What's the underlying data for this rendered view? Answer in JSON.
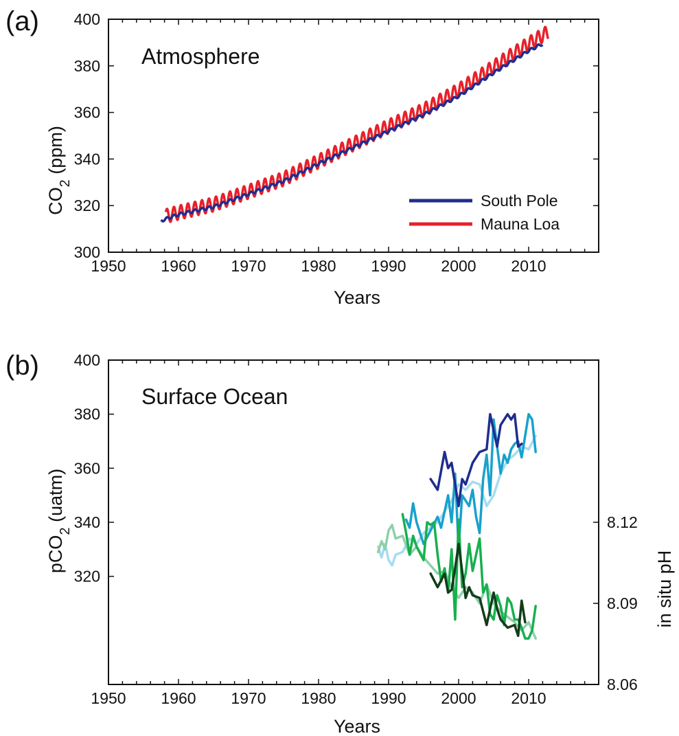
{
  "chart_data": [
    {
      "panel_letter": "(a)",
      "type": "line",
      "title": "Atmosphere",
      "xlabel": "Years",
      "ylabel": "CO2 (ppm)",
      "xlim": [
        1950,
        2020
      ],
      "ylim": [
        300,
        400
      ],
      "xticks": [
        1950,
        1960,
        1970,
        1980,
        1990,
        2000,
        2010
      ],
      "yticks": [
        300,
        320,
        340,
        360,
        380,
        400
      ],
      "grid": false,
      "legend_position": "lower-right",
      "series": [
        {
          "name": "South Pole",
          "color": "#1f2d8f",
          "seasonal_amplitude": 0.6,
          "x": [
            1957.5,
            1960,
            1965,
            1970,
            1975,
            1980,
            1985,
            1990,
            1995,
            2000,
            2005,
            2010,
            2012
          ],
          "y": [
            313.5,
            316.2,
            319.5,
            325.0,
            330.5,
            338.0,
            345.0,
            352.0,
            359.0,
            367.0,
            377.0,
            386.5,
            389.5
          ]
        },
        {
          "name": "Mauna Loa",
          "color": "#e8202a",
          "seasonal_amplitude": 3.0,
          "x": [
            1958.2,
            1960,
            1965,
            1970,
            1975,
            1980,
            1985,
            1990,
            1995,
            2000,
            2005,
            2010,
            2012.8
          ],
          "y": [
            315.5,
            317.0,
            320.5,
            326.0,
            331.5,
            339.0,
            346.5,
            354.0,
            361.0,
            369.5,
            379.5,
            389.5,
            394.5
          ]
        }
      ]
    },
    {
      "panel_letter": "(b)",
      "type": "line",
      "title": "Surface Ocean",
      "xlabel": "Years",
      "ylabel": "pCO2 (uatm)",
      "y2label": "in situ pH",
      "xlim": [
        1950,
        2020
      ],
      "ylim_left": [
        280,
        400
      ],
      "ylim_right": [
        8.06,
        8.18
      ],
      "xticks": [
        1950,
        1960,
        1970,
        1980,
        1990,
        2000,
        2010
      ],
      "yticks_left": [
        320,
        340,
        360,
        380,
        400
      ],
      "yticks_right": [
        "8.06",
        "8.09",
        "8.12"
      ],
      "grid": false,
      "series": [
        {
          "axis": "left",
          "color": "#1e2d8e",
          "x": [
            1996,
            1997,
            1998,
            1998.5,
            1999,
            1999.5,
            2000,
            2000.5,
            2001,
            2002,
            2003,
            2004,
            2004.5,
            2005,
            2005.5,
            2006,
            2007,
            2007.5,
            2008,
            2008.5,
            2009
          ],
          "y": [
            356,
            352,
            366,
            360,
            362,
            354,
            346,
            356,
            354,
            362,
            366,
            367,
            380,
            374,
            368,
            376,
            380,
            378,
            380,
            368,
            369
          ]
        },
        {
          "axis": "left",
          "color": "#19a1cc",
          "x": [
            1992.5,
            1993,
            1993.5,
            1994,
            1995,
            1996,
            1997,
            1997.5,
            1998,
            1998.5,
            1999,
            1999.5,
            2000,
            2000.5,
            2001,
            2001.5,
            2002,
            2002.5,
            2003,
            2003.5,
            2004,
            2004.5,
            2005,
            2006,
            2006.5,
            2007,
            2007.5,
            2008,
            2008.5,
            2009,
            2010,
            2010.5,
            2011
          ],
          "y": [
            341,
            338,
            347,
            340,
            332,
            337,
            342,
            338,
            344,
            350,
            340,
            358,
            330,
            350,
            348,
            346,
            352,
            342,
            336,
            356,
            365,
            350,
            378,
            358,
            365,
            362,
            367,
            369,
            370,
            364,
            380,
            378,
            366
          ]
        },
        {
          "axis": "left",
          "color": "#a6dcf0",
          "x": [
            1988.5,
            1989,
            1989.5,
            1990,
            1990.5,
            1991,
            1992,
            1993,
            1994,
            1995,
            1996,
            1997,
            1998,
            1999,
            2000,
            2001,
            2002,
            2003,
            2004,
            2005,
            2006,
            2007,
            2008,
            2009,
            2010,
            2011
          ],
          "y": [
            331,
            327,
            332,
            326,
            324,
            328,
            329,
            334,
            332,
            336,
            338,
            340,
            344,
            348,
            354,
            352,
            355,
            354,
            346,
            350,
            358,
            363,
            365,
            368,
            367,
            372
          ]
        },
        {
          "axis": "right",
          "color": "#8fd0a9",
          "x": [
            1988.5,
            1989,
            1989.5,
            1990,
            1990.5,
            1991,
            1992,
            1993,
            1994,
            1995,
            1996,
            1997,
            1998,
            1999,
            2000,
            2001,
            2002,
            2003,
            2004,
            2005,
            2006,
            2007,
            2008,
            2009,
            2010,
            2011
          ],
          "y": [
            8.109,
            8.113,
            8.11,
            8.117,
            8.119,
            8.114,
            8.115,
            8.108,
            8.111,
            8.107,
            8.104,
            8.101,
            8.102,
            8.096,
            8.092,
            8.096,
            8.094,
            8.09,
            8.097,
            8.09,
            8.087,
            8.085,
            8.083,
            8.08,
            8.083,
            8.077
          ]
        },
        {
          "axis": "right",
          "color": "#17b04e",
          "x": [
            1992,
            1992.5,
            1993,
            1993.5,
            1994,
            1995,
            1995.5,
            1996,
            1996.5,
            1997,
            1997.5,
            1998,
            1998.5,
            1999,
            1999.5,
            2000,
            2000.5,
            2001,
            2001.5,
            2002,
            2003,
            2003.5,
            2004,
            2004.5,
            2005,
            2005.5,
            2006,
            2006.5,
            2007,
            2007.5,
            2008,
            2008.5,
            2009,
            2009.5,
            2010,
            2010.5,
            2011
          ],
          "y": [
            8.123,
            8.116,
            8.108,
            8.115,
            8.111,
            8.106,
            8.12,
            8.119,
            8.12,
            8.108,
            8.098,
            8.103,
            8.094,
            8.11,
            8.084,
            8.121,
            8.096,
            8.101,
            8.112,
            8.102,
            8.114,
            8.094,
            8.097,
            8.086,
            8.084,
            8.093,
            8.089,
            8.082,
            8.092,
            8.09,
            8.084,
            8.084,
            8.081,
            8.077,
            8.077,
            8.08,
            8.089
          ]
        },
        {
          "axis": "right",
          "color": "#153b1c",
          "x": [
            1996,
            1997,
            1998,
            1998.5,
            1999,
            1999.5,
            2000,
            2000.5,
            2001,
            2001.5,
            2002,
            2003,
            2004,
            2005,
            2005.5,
            2006,
            2007,
            2008,
            2008.5,
            2009,
            2009.5
          ],
          "y": [
            8.101,
            8.096,
            8.101,
            8.094,
            8.095,
            8.103,
            8.112,
            8.102,
            8.092,
            8.096,
            8.093,
            8.092,
            8.082,
            8.094,
            8.088,
            8.084,
            8.081,
            8.082,
            8.078,
            8.091,
            8.083
          ]
        }
      ]
    }
  ]
}
